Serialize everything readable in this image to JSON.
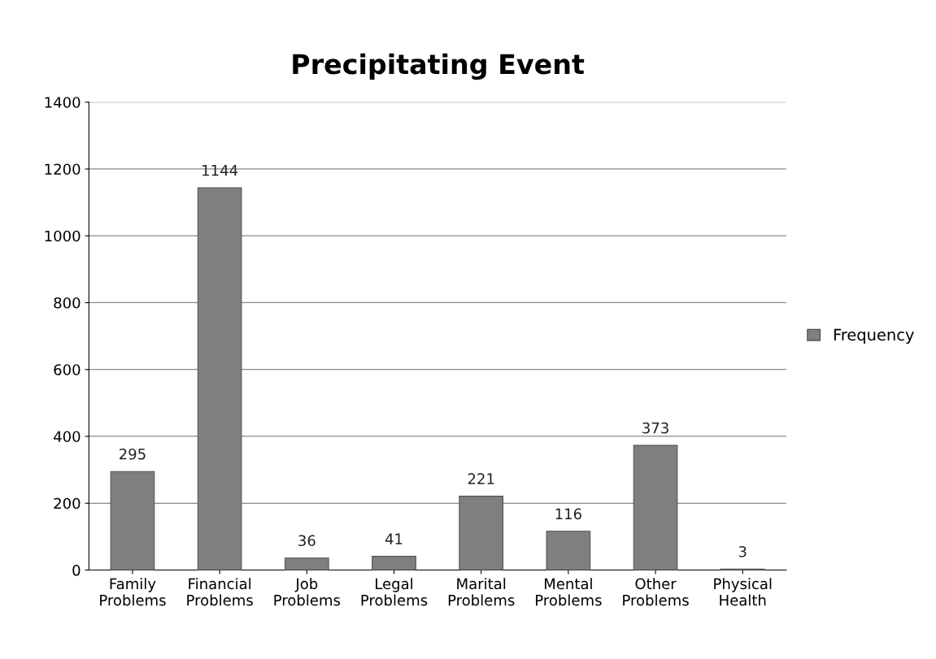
{
  "chart_data": {
    "type": "bar",
    "title": "Precipitating Event",
    "categories": [
      "Family\nProblems",
      "Financial\nProblems",
      "Job\nProblems",
      "Legal\nProblems",
      "Marital\nProblems",
      "Mental\nProblems",
      "Other\nProblems",
      "Physical\nHealth"
    ],
    "series": [
      {
        "name": "Frequency",
        "color": "#7f7f7f",
        "values": [
          295,
          1144,
          36,
          41,
          221,
          116,
          373,
          3
        ]
      }
    ],
    "ylim": [
      0,
      1400
    ],
    "yticks": [
      0,
      200,
      400,
      600,
      800,
      1000,
      1200,
      1400
    ],
    "grid": "y",
    "legend": "right",
    "data_labels": true
  }
}
